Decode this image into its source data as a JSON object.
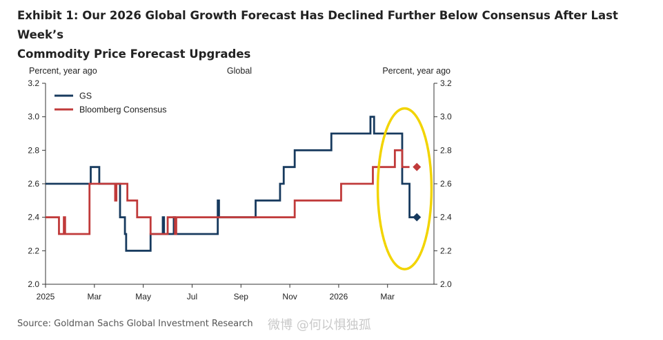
{
  "title": {
    "line1": "Exhibit 1: Our 2026 Global Growth Forecast Has Declined Further Below Consensus After Last Week’s",
    "line2": "Commodity Price Forecast Upgrades"
  },
  "source": "Source: Goldman Sachs Global Investment Research",
  "watermark": "微博 @何以惧独孤",
  "colors": {
    "gs": "#173a5e",
    "consensus": "#c03a3a",
    "highlight": "#f2d400",
    "axis": "#333333"
  },
  "chart_data": {
    "type": "line",
    "title": "Global",
    "ylabel_left": "Percent, year ago",
    "ylabel_right": "Percent, year ago",
    "ylim": [
      2.0,
      3.2
    ],
    "yticks": [
      2.0,
      2.2,
      2.4,
      2.6,
      2.8,
      3.0,
      3.2
    ],
    "ytick_labels": [
      "2.0",
      "2.2",
      "2.4",
      "2.6",
      "2.8",
      "3.0",
      "3.2"
    ],
    "xlim": [
      0,
      15.9
    ],
    "xticks": [
      0,
      2,
      4,
      6,
      8,
      10,
      12,
      14
    ],
    "xtick_labels": [
      "2025",
      "Mar",
      "May",
      "Jul",
      "Sep",
      "Nov",
      "2026",
      "Mar"
    ],
    "x_unit": "months since Jan 2025",
    "series": [
      {
        "name": "GS",
        "color_key": "gs",
        "step": true,
        "x": [
          0,
          1.85,
          2.2,
          2.5,
          2.9,
          3.0,
          3.05,
          3.25,
          3.3,
          3.35,
          3.4,
          3.55,
          3.65,
          4.3,
          4.45,
          4.8,
          4.85,
          4.9,
          5.2,
          5.25,
          5.3,
          5.5,
          5.55,
          5.6,
          6.9,
          7.05,
          7.1,
          7.15,
          7.2,
          8.5,
          8.6,
          9.6,
          9.75,
          10.2,
          10.75,
          11.5,
          11.7,
          13.15,
          13.3,
          13.45,
          14.3,
          14.35,
          14.6,
          14.9,
          15.2
        ],
        "y": [
          2.6,
          2.7,
          2.6,
          2.6,
          2.6,
          2.6,
          2.4,
          2.3,
          2.2,
          2.2,
          2.2,
          2.2,
          2.2,
          2.3,
          2.3,
          2.4,
          2.3,
          2.3,
          2.3,
          2.4,
          2.3,
          2.3,
          2.3,
          2.3,
          2.3,
          2.5,
          2.4,
          2.4,
          2.4,
          2.4,
          2.5,
          2.6,
          2.7,
          2.8,
          2.8,
          2.8,
          2.9,
          2.9,
          3.0,
          2.9,
          2.9,
          2.9,
          2.6,
          2.4,
          2.4
        ]
      },
      {
        "name": "Bloomberg Consensus",
        "color_key": "consensus",
        "step": true,
        "x": [
          0,
          0.55,
          0.75,
          0.8,
          1.8,
          2.85,
          2.9,
          3.0,
          3.05,
          3.35,
          3.75,
          4.1,
          4.3,
          4.4,
          4.85,
          4.95,
          5.0,
          5.3,
          5.35,
          7.0,
          10.2,
          10.95,
          12.1,
          13.4,
          13.9,
          14.3,
          14.45,
          14.6,
          14.9
        ],
        "y": [
          2.4,
          2.3,
          2.4,
          2.3,
          2.6,
          2.5,
          2.6,
          2.6,
          2.6,
          2.5,
          2.4,
          2.4,
          2.3,
          2.3,
          2.3,
          2.3,
          2.4,
          2.3,
          2.4,
          2.4,
          2.5,
          2.5,
          2.6,
          2.7,
          2.7,
          2.8,
          2.8,
          2.7,
          2.7
        ]
      }
    ],
    "forecast_points": [
      {
        "series": "GS",
        "x": 15.2,
        "y": 2.4,
        "marker": "diamond"
      },
      {
        "series": "Bloomberg Consensus",
        "x": 15.2,
        "y": 2.7,
        "marker": "diamond"
      }
    ],
    "annotation": {
      "type": "ellipse",
      "x_center": 14.7,
      "y_center": 2.57,
      "x_radius": 1.1,
      "y_radius": 0.48
    },
    "legend": [
      "GS",
      "Bloomberg Consensus"
    ],
    "legend_position": "top-left",
    "grid": false
  }
}
